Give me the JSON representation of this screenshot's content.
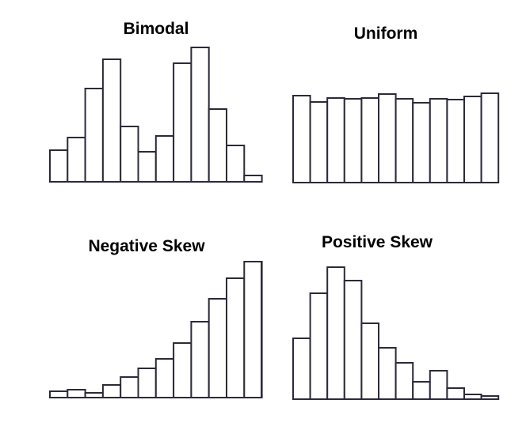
{
  "colors": {
    "stroke": "#2a2a3a",
    "fill": "#ffffff"
  },
  "chart_data": [
    {
      "type": "bar",
      "title": "Bimodal",
      "values": [
        40,
        56,
        118,
        155,
        70,
        38,
        58,
        150,
        170,
        92,
        46,
        8
      ]
    },
    {
      "type": "bar",
      "title": "Uniform",
      "values": [
        110,
        102,
        107,
        106,
        107,
        112,
        106,
        101,
        106,
        105,
        109,
        113
      ]
    },
    {
      "type": "bar",
      "title": "Negative Skew",
      "values": [
        8,
        10,
        6,
        16,
        26,
        37,
        49,
        69,
        96,
        125,
        151,
        172
      ]
    },
    {
      "type": "bar",
      "title": "Positive Skew",
      "values": [
        77,
        134,
        167,
        150,
        96,
        65,
        46,
        22,
        36,
        14,
        6,
        4
      ]
    }
  ]
}
